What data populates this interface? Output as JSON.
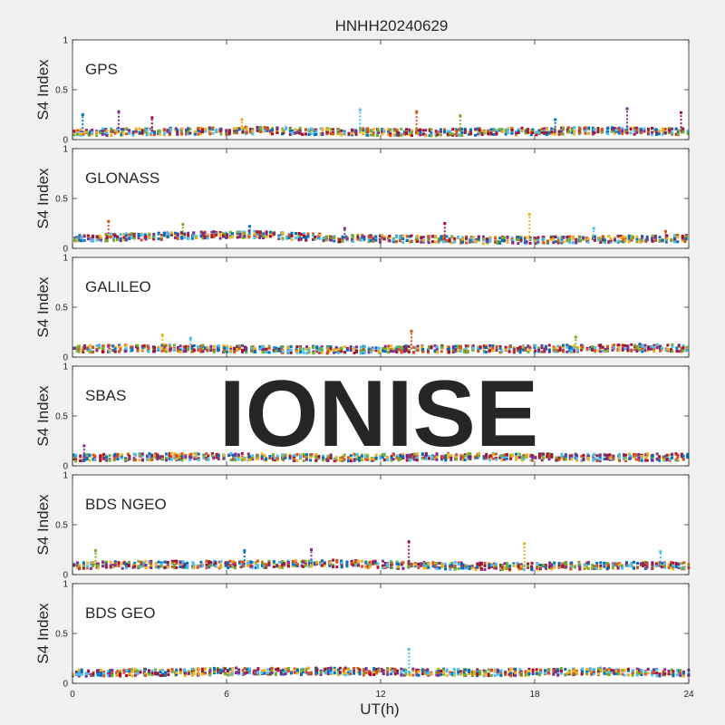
{
  "chart_data": {
    "type": "scatter",
    "title": "HNHH20240629",
    "xlabel": "UT(h)",
    "ylabel": "S4 Index",
    "xlim": [
      0,
      24
    ],
    "ylim": [
      0,
      1
    ],
    "xticks": [
      "0",
      "6",
      "12",
      "18",
      "24"
    ],
    "yticks": [
      "0",
      "0.5",
      "1"
    ],
    "watermark": "IONISE",
    "colors": [
      "#0072BD",
      "#D95319",
      "#EDB120",
      "#7E2F8E",
      "#77AC30",
      "#4DBEEE",
      "#A2142F"
    ],
    "panels": [
      {
        "name": "GPS",
        "baseline": [
          0.07,
          0.08,
          0.09,
          0.08,
          0.07,
          0.08,
          0.09,
          0.08
        ],
        "spikes": [
          [
            0.4,
            0.25
          ],
          [
            1.8,
            0.28
          ],
          [
            3.1,
            0.22
          ],
          [
            6.6,
            0.2
          ],
          [
            11.2,
            0.3
          ],
          [
            13.4,
            0.28
          ],
          [
            15.1,
            0.24
          ],
          [
            18.8,
            0.2
          ],
          [
            21.6,
            0.31
          ],
          [
            23.7,
            0.27
          ]
        ]
      },
      {
        "name": "GLONASS",
        "baseline": [
          0.1,
          0.12,
          0.14,
          0.1,
          0.09,
          0.08,
          0.09,
          0.1
        ],
        "spikes": [
          [
            1.4,
            0.27
          ],
          [
            4.3,
            0.24
          ],
          [
            6.9,
            0.22
          ],
          [
            10.6,
            0.2
          ],
          [
            14.5,
            0.25
          ],
          [
            17.8,
            0.34
          ],
          [
            20.3,
            0.2
          ],
          [
            23.1,
            0.17
          ]
        ]
      },
      {
        "name": "GALILEO",
        "baseline": [
          0.08,
          0.09,
          0.08,
          0.07,
          0.08,
          0.08,
          0.09,
          0.09
        ],
        "spikes": [
          [
            3.5,
            0.22
          ],
          [
            4.6,
            0.19
          ],
          [
            13.2,
            0.26
          ],
          [
            19.6,
            0.2
          ],
          [
            22.1,
            0.13
          ]
        ]
      },
      {
        "name": "SBAS",
        "baseline": [
          0.08,
          0.09,
          0.09,
          0.08,
          0.09,
          0.09,
          0.08,
          0.09
        ],
        "spikes": [
          [
            0.45,
            0.2
          ],
          [
            18.5,
            0.12
          ],
          [
            22.4,
            0.12
          ]
        ]
      },
      {
        "name": "BDS NGEO",
        "baseline": [
          0.09,
          0.1,
          0.1,
          0.11,
          0.09,
          0.08,
          0.09,
          0.09
        ],
        "spikes": [
          [
            0.9,
            0.24
          ],
          [
            6.7,
            0.24
          ],
          [
            9.3,
            0.25
          ],
          [
            13.1,
            0.33
          ],
          [
            17.6,
            0.31
          ],
          [
            22.9,
            0.23
          ]
        ]
      },
      {
        "name": "BDS GEO",
        "baseline": [
          0.1,
          0.11,
          0.12,
          0.12,
          0.11,
          0.11,
          0.12,
          0.1
        ],
        "spikes": [
          [
            13.1,
            0.34
          ]
        ]
      }
    ]
  }
}
